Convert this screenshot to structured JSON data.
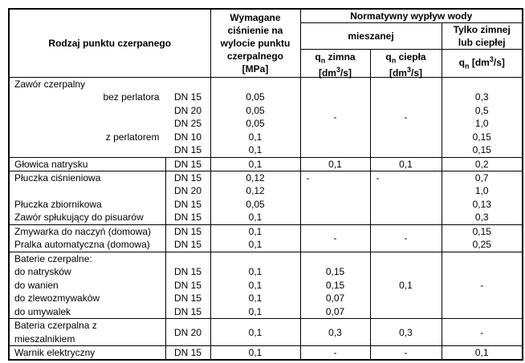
{
  "table": {
    "colors": {
      "border": "#000000",
      "text": "#000000",
      "background": "#ffffff"
    },
    "header": {
      "rodzaj": "Rodzaj punktu czerpanego",
      "cisnienie_lines": [
        "Wymagane",
        "ciśnienie na",
        "wylocie punktu",
        "czerpalnego",
        "[MPa]"
      ],
      "normatywny": "Normatywny wypływ wody",
      "mieszanej": "mieszanej",
      "tylko_lines": [
        "Tylko zimnej",
        "lub ciepłej"
      ],
      "qn_zimna_lines": [
        "q_{n} zimna",
        "[dm^{3}/s]"
      ],
      "qn_ciepla_lines": [
        "q_{n} ciepła",
        "[dm^{3}/s]"
      ],
      "qn_tylko": "q_{n} [dm^{3}/s]"
    },
    "groups": [
      {
        "id": "zawor-czerpalny",
        "lines": [
          {
            "name": "Zawór czerpalny",
            "dn": "",
            "mpa": "",
            "tylko": ""
          },
          {
            "name": "bez perlatora",
            "dn": "DN 15",
            "mpa": "0,05",
            "tylko": "0,3"
          },
          {
            "name": "",
            "dn": "DN 20",
            "mpa": "0,05",
            "tylko": "0,5"
          },
          {
            "name": "",
            "dn": "DN 25",
            "mpa": "0,05",
            "tylko": "1,0"
          },
          {
            "name": "z perlatorem",
            "dn": "DN 10",
            "mpa": "0,1",
            "tylko": "0,15"
          },
          {
            "name": "",
            "dn": "DN 15",
            "mpa": "0,1",
            "tylko": "0,15"
          }
        ],
        "zimna": "-",
        "ciepla": "-"
      },
      {
        "id": "glowica-natrysku",
        "name": "Głowica natrysku",
        "dn": "DN 15",
        "mpa": "0,1",
        "zimna": "0,1",
        "ciepla": "0,1",
        "tylko": "0,2"
      },
      {
        "id": "pluczki",
        "lines": [
          {
            "name": "Płuczka ciśnieniowa",
            "dn": "DN 15",
            "mpa": "0,12",
            "tylko": "0,7"
          },
          {
            "name": "",
            "dn": "DN 20",
            "mpa": "0,12",
            "tylko": "1,0"
          },
          {
            "name": "Płuczka zbiornikowa",
            "dn": "DN 15",
            "mpa": "0,05",
            "tylko": "0,13"
          },
          {
            "name": "Zawór spłukujący do pisuarów",
            "dn": "DN 15",
            "mpa": "0,1",
            "tylko": "0,3"
          }
        ],
        "zimna": "-",
        "ciepla": "-"
      },
      {
        "id": "agd",
        "lines": [
          {
            "name": "Zmywarka do naczyń (domowa)",
            "dn": "DN 15",
            "mpa": "0,1",
            "tylko": "0,15"
          },
          {
            "name": "Pralka automatyczna (domowa)",
            "dn": "DN 15",
            "mpa": "0,1",
            "tylko": "0,25"
          }
        ],
        "zimna": "-",
        "ciepla": "-"
      },
      {
        "id": "baterie-czerpalne",
        "lines": [
          {
            "name": "Baterie czerpalne:",
            "dn": "",
            "mpa": "",
            "zimna": ""
          },
          {
            "name": "do natrysków",
            "dn": "DN 15",
            "mpa": "0,1",
            "zimna": "0,15"
          },
          {
            "name": "do wanien",
            "dn": "DN 15",
            "mpa": "0,1",
            "zimna": "0,15"
          },
          {
            "name": "do zlewozmywaków",
            "dn": "DN 15",
            "mpa": "0,1",
            "zimna": "0,07"
          },
          {
            "name": "do umywalek",
            "dn": "DN 15",
            "mpa": "0,1",
            "zimna": "0,07"
          }
        ],
        "ciepla": "0,1",
        "tylko": "-"
      },
      {
        "id": "bateria-mieszalnik",
        "name_lines": [
          "Bateria czerpalna z",
          "mieszalnikiem"
        ],
        "dn": "DN 20",
        "mpa": "0,1",
        "zimna": "0,3",
        "ciepla": "0,3",
        "tylko": "-"
      },
      {
        "id": "warnik",
        "name": "Warnik elektryczny",
        "dn": "DN 15",
        "mpa": "0,1",
        "zimna": "-",
        "ciepla": "-",
        "tylko": "0,1"
      }
    ]
  }
}
